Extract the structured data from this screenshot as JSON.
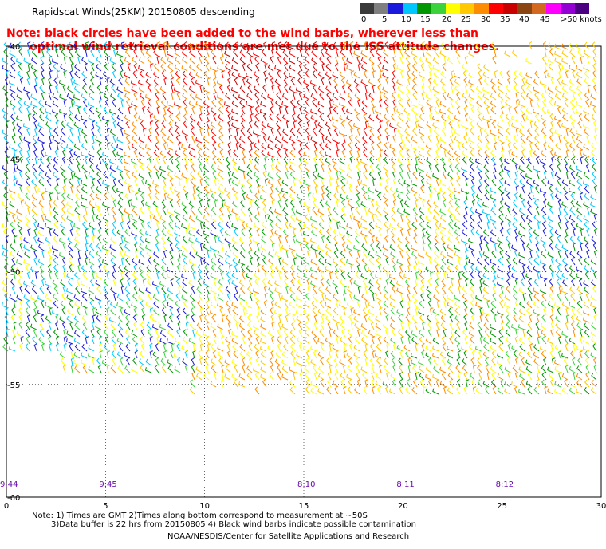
{
  "header": {
    "title": "Rapidscat Winds(25KM) 20150805 descending",
    "note_line1": "Note: black circles have been added to the wind barbs, wherever less than",
    "note_line2": "      optimal wind retrieval conditions are met due to the ISS attitude changes."
  },
  "legend": {
    "colors": [
      "#3a3a3a",
      "#7f7f7f",
      "#1a1adc",
      "#00c8ff",
      "#009600",
      "#3cd23c",
      "#ffff00",
      "#ffc800",
      "#ff8c00",
      "#ff0000",
      "#c80000",
      "#8b4513",
      "#d2691e",
      "#ff00ff",
      "#9400d3",
      "#4b0082"
    ],
    "labels": [
      "0",
      "5",
      "10",
      "15",
      "20",
      "25",
      "30",
      "35",
      "40",
      "45",
      ">50 knots"
    ]
  },
  "axes": {
    "x_ticks": [
      "0",
      "5",
      "10",
      "15",
      "20",
      "25",
      "30"
    ],
    "y_ticks": [
      "-40",
      "-45",
      "-50",
      "-55",
      "-60"
    ]
  },
  "time_labels": [
    "9:44",
    "9:45",
    "8:10",
    "8:11",
    "8:12"
  ],
  "footer": {
    "line1": "Note: 1) Times are GMT 2)Times along bottom correspond to measurement at ~50S",
    "line2": "3)Data buffer is 22 hrs from 20150805 4) Black wind barbs indicate possible contamination",
    "line3": "NOAA/NESDIS/Center for Satellite Applications and Research"
  }
}
